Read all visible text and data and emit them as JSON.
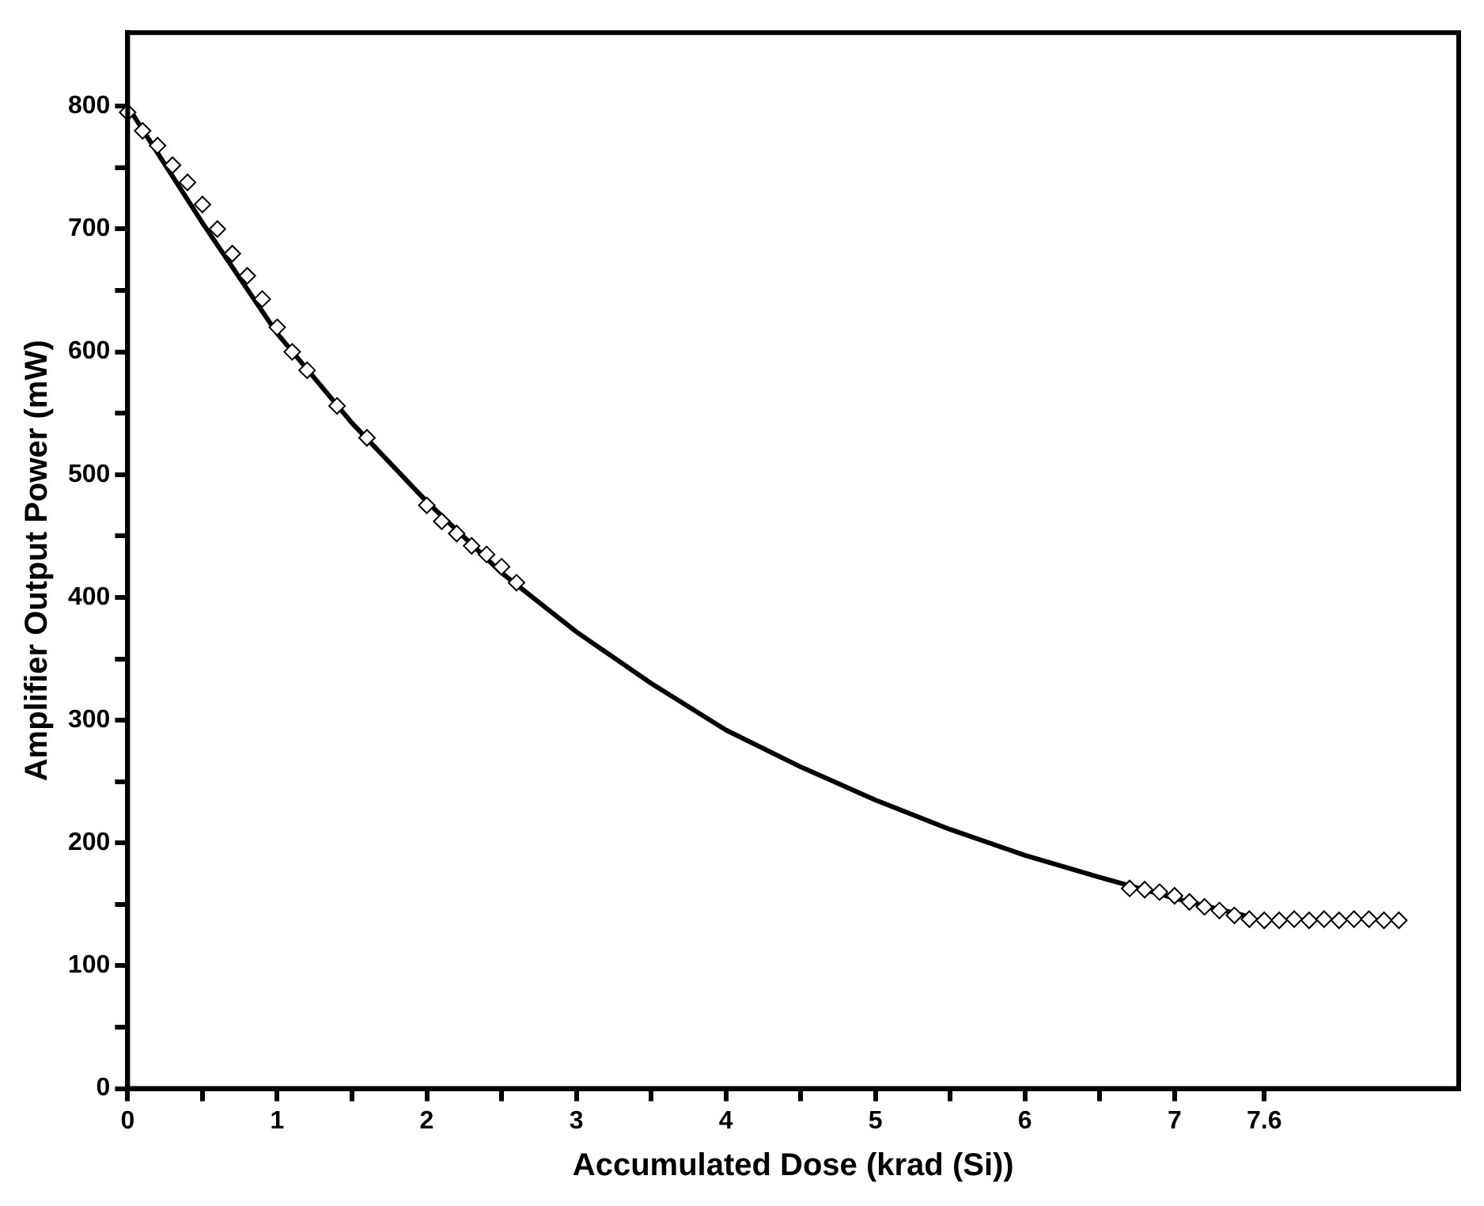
{
  "chart_data": {
    "type": "scatter",
    "xlabel": "Accumulated Dose (krad (Si))",
    "ylabel": "Amplifier Output Power (mW)",
    "xlim": [
      0,
      8.9
    ],
    "ylim": [
      0,
      860
    ],
    "xticks": [
      0,
      {
        "value": 0.5,
        "label": null
      },
      1,
      {
        "value": 1.5,
        "label": null
      },
      2,
      {
        "value": 2.5,
        "label": null
      },
      3,
      {
        "value": 3.5,
        "label": null
      },
      4,
      {
        "value": 4.5,
        "label": null
      },
      5,
      {
        "value": 5.5,
        "label": null
      },
      6,
      {
        "value": 6.5,
        "label": null
      },
      7,
      7.6
    ],
    "yticks": [
      0,
      {
        "value": 50,
        "label": null
      },
      100,
      {
        "value": 150,
        "label": null
      },
      200,
      {
        "value": 250,
        "label": null
      },
      300,
      {
        "value": 350,
        "label": null
      },
      400,
      {
        "value": 450,
        "label": null
      },
      500,
      {
        "value": 550,
        "label": null
      },
      600,
      {
        "value": 650,
        "label": null
      },
      700,
      {
        "value": 750,
        "label": null
      },
      800
    ],
    "grid": false,
    "legend": false,
    "series": [
      {
        "type": "scatter",
        "marker": "diamond",
        "color": "#000000",
        "x": [
          0,
          0.1,
          0.2,
          0.3,
          0.4,
          0.5,
          0.6,
          0.7,
          0.8,
          0.9,
          1.0,
          1.1,
          1.2,
          1.4,
          1.6,
          2.0,
          2.1,
          2.2,
          2.3,
          2.4,
          2.5,
          2.6,
          6.7,
          6.8,
          6.9,
          7.0,
          7.1,
          7.2,
          7.3,
          7.4,
          7.5,
          7.6,
          7.7,
          7.8,
          7.9,
          8.0,
          8.1,
          8.2,
          8.3,
          8.4,
          8.5
        ],
        "values": [
          795,
          780,
          768,
          752,
          738,
          720,
          700,
          680,
          662,
          643,
          620,
          600,
          585,
          556,
          530,
          475,
          462,
          452,
          442,
          435,
          425,
          412,
          163,
          162,
          160,
          157,
          152,
          148,
          145,
          141,
          138,
          137,
          137,
          138,
          137,
          138,
          137,
          138,
          138,
          137,
          137
        ]
      },
      {
        "type": "line",
        "marker": "none",
        "line_style": "solid",
        "color": "#000000",
        "x": [
          0,
          0.5,
          1,
          1.5,
          2,
          2.5,
          3,
          3.5,
          4,
          4.5,
          5,
          5.5,
          6,
          6.5,
          7,
          7.5
        ],
        "values": [
          800,
          705,
          615,
          542,
          478,
          420,
          372,
          330,
          292,
          262,
          235,
          211,
          190,
          172,
          155,
          140
        ]
      }
    ]
  }
}
